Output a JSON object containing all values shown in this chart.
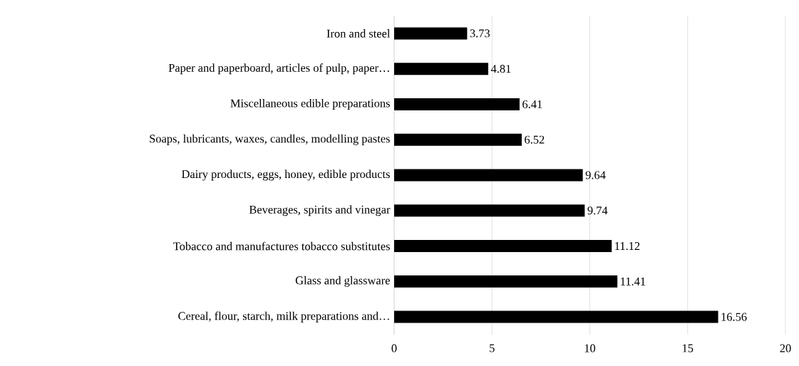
{
  "chart_data": {
    "type": "bar",
    "orientation": "horizontal",
    "categories": [
      "Iron and steel",
      "Paper and paperboard, articles of pulp, paper…",
      "Miscellaneous edible preparations",
      "Soaps, lubricants, waxes, candles, modelling pastes",
      "Dairy products, eggs, honey, edible products",
      "Beverages, spirits and vinegar",
      "Tobacco and manufactures tobacco substitutes",
      "Glass and glassware",
      "Cereal, flour, starch, milk preparations and…"
    ],
    "values": [
      3.73,
      4.81,
      6.41,
      6.52,
      9.64,
      9.74,
      11.12,
      11.41,
      16.56
    ],
    "color": "#000000",
    "xlim": [
      0,
      20
    ],
    "xticks": [
      0,
      5,
      10,
      15,
      20
    ],
    "grid": "x",
    "data_labels": true
  }
}
